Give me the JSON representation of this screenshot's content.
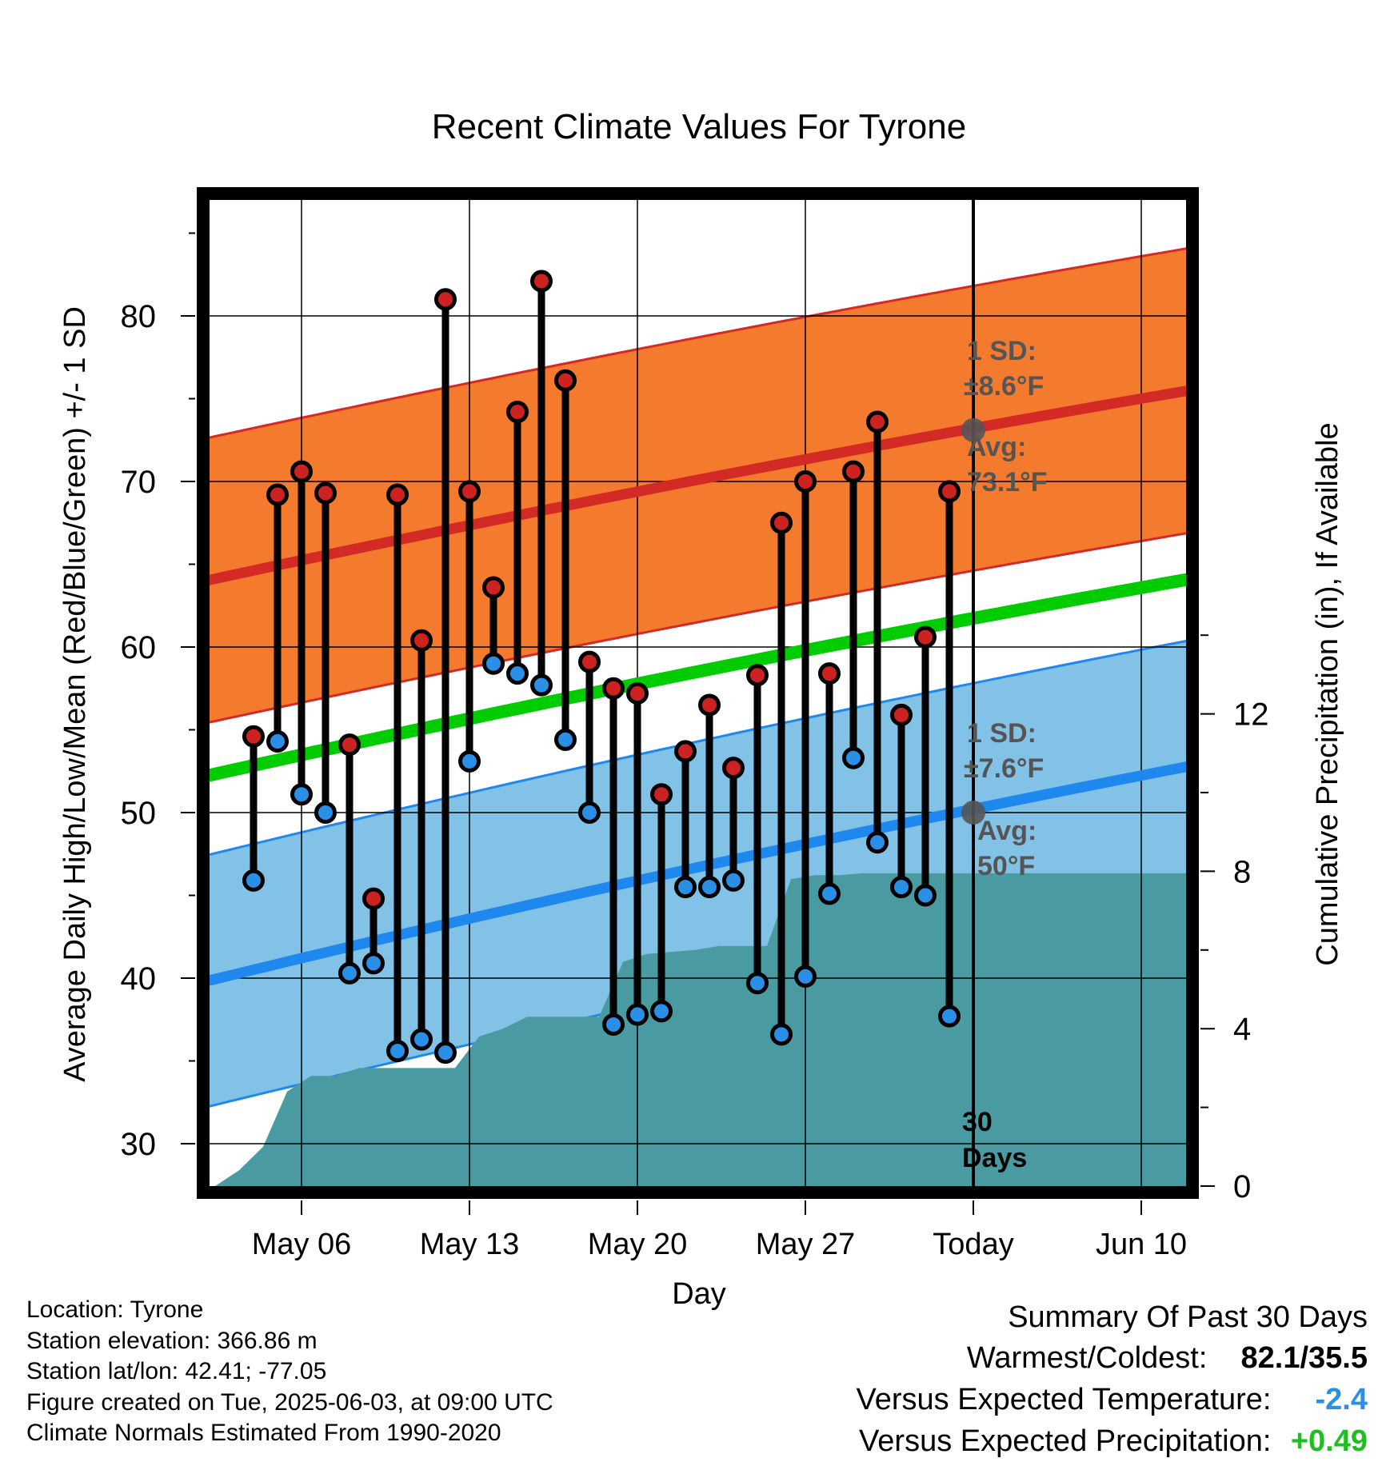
{
  "chart_data": {
    "type": "line",
    "title": "Recent Climate Values For Tyrone",
    "xlabel": "Day",
    "ylabel": "Average Daily High/Low/Mean (Red/Blue/Green) +/- 1 SD",
    "y2label": "Cumulative Precipitation (in), If Available",
    "ylim": [
      27.5,
      87.5
    ],
    "y2lim": [
      0,
      18.9
    ],
    "xlim": [
      "May 03",
      "Jun 12"
    ],
    "grid": true,
    "x_ticks": [
      "May 06",
      "May 13",
      "May 20",
      "May 27",
      "Today",
      "Jun 10"
    ],
    "y_ticks": [
      30,
      40,
      50,
      60,
      70,
      80
    ],
    "y2_ticks": [
      0,
      4,
      8,
      12
    ],
    "today_label": "30 Days",
    "highs": [
      54.6,
      69.2,
      70.6,
      69.3,
      54.1,
      44.8,
      69.2,
      60.4,
      81.0,
      69.4,
      63.6,
      74.2,
      82.1,
      76.1,
      59.1,
      57.5,
      57.2,
      51.1,
      53.7,
      56.5,
      52.7,
      58.3,
      67.5,
      70.0,
      58.4,
      70.6,
      73.6,
      55.9,
      60.6,
      69.4
    ],
    "lows": [
      45.9,
      54.3,
      51.1,
      50.0,
      40.3,
      40.9,
      35.6,
      36.3,
      35.5,
      53.1,
      59.0,
      58.4,
      57.7,
      54.4,
      50.0,
      37.2,
      37.8,
      38.0,
      45.5,
      45.5,
      45.9,
      39.7,
      36.6,
      40.1,
      45.1,
      53.3,
      48.2,
      45.5,
      45.0,
      37.7
    ],
    "normal_high": {
      "avg_today": 73.1,
      "sd": 8.6,
      "start": 64.0,
      "end": 75.5,
      "label_sd": "1 SD:",
      "label_sd_val": "±8.6°F",
      "label_avg": "Avg:",
      "label_avg_val": "73.1°F"
    },
    "normal_low": {
      "avg_today": 50.0,
      "sd": 7.6,
      "start": 39.8,
      "end": 52.8,
      "label_sd": "1 SD:",
      "label_sd_val": "±7.6°F",
      "label_avg": "Avg:",
      "label_avg_val": "50°F"
    },
    "normal_mean": {
      "start": 52.2,
      "end": 64.1
    },
    "precip_cumulative": [
      0,
      0.4,
      1.0,
      2.4,
      2.8,
      2.8,
      3.0,
      3.0,
      3.0,
      3.0,
      3.0,
      3.8,
      4.0,
      4.3,
      4.3,
      4.3,
      4.3,
      5.7,
      5.9,
      5.95,
      6.0,
      6.1,
      6.1,
      6.1,
      7.8,
      7.9,
      7.9,
      7.95,
      7.95,
      7.95,
      7.95
    ],
    "colors": {
      "high_band": "#f47a2e",
      "high_line": "#d42a26",
      "low_band": "#82c2e6",
      "low_line": "#1e88ef",
      "mean_line": "#00cc00",
      "precip": "#4a9aa2",
      "high_dot": "#cc2222",
      "low_dot": "#2a8fe6",
      "annotation": "#555555",
      "vs_temp": "#2a8fe6",
      "vs_precip": "#1fbf1f"
    }
  },
  "info": {
    "location": "Location: Tyrone",
    "elevation": "Station elevation: 366.86 m",
    "latlon": "Station lat/lon: 42.41; -77.05",
    "created": "Figure created on Tue, 2025-06-03, at 09:00 UTC",
    "normals": "Climate Normals Estimated From 1990-2020"
  },
  "summary": {
    "title": "Summary Of Past 30 Days",
    "warm_cold_label": "Warmest/Coldest:",
    "warm_cold_value": "82.1/35.5",
    "vs_temp_label": "Versus Expected Temperature:",
    "vs_temp_value": "-2.4",
    "vs_precip_label": "Versus Expected Precipitation:",
    "vs_precip_value": "+0.49"
  }
}
